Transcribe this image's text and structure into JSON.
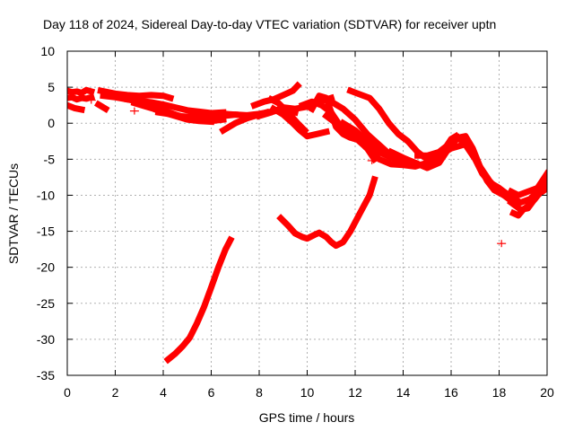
{
  "chart_data": {
    "type": "line",
    "title": "Day 118 of 2024, Sidereal Day-to-day VTEC variation (SDTVAR) for receiver uptn",
    "xlabel": "GPS time / hours",
    "ylabel": "SDTVAR / TECUs",
    "xlim": [
      0,
      20
    ],
    "ylim": [
      -35,
      10
    ],
    "xticks": [
      0,
      2,
      4,
      6,
      8,
      10,
      12,
      14,
      16,
      18,
      20
    ],
    "yticks": [
      10,
      5,
      0,
      -5,
      -10,
      -15,
      -20,
      -25,
      -30,
      -35
    ],
    "grid": true,
    "color": "#ff0000",
    "series": [
      {
        "name": "trace-1",
        "x": [
          0.0,
          0.2,
          0.4,
          0.6,
          0.8,
          1.0
        ],
        "y": [
          4.5,
          4.3,
          4.4,
          4.2,
          4.6,
          4.4
        ]
      },
      {
        "name": "trace-2",
        "x": [
          0.0,
          0.2,
          0.4,
          0.6,
          0.8,
          1.0
        ],
        "y": [
          3.5,
          3.6,
          3.3,
          3.5,
          3.4,
          3.6
        ]
      },
      {
        "name": "trace-3",
        "x": [
          0.0,
          0.3,
          0.6
        ],
        "y": [
          2.5,
          2.1,
          1.9
        ]
      },
      {
        "name": "trace-4",
        "x": [
          1.4,
          2.0,
          2.5,
          3.0,
          3.5,
          4.0,
          4.3
        ],
        "y": [
          4.5,
          4.1,
          3.9,
          3.8,
          3.9,
          3.8,
          3.5
        ]
      },
      {
        "name": "trace-5",
        "x": [
          1.5,
          2.0,
          2.5,
          3.0,
          3.5,
          4.0,
          4.5,
          5.0,
          5.5,
          6.0,
          6.5
        ],
        "y": [
          3.8,
          3.6,
          3.3,
          3.1,
          2.9,
          2.6,
          2.2,
          1.8,
          1.6,
          1.4,
          1.5
        ]
      },
      {
        "name": "trace-6",
        "x": [
          1.3,
          1.6
        ],
        "y": [
          2.6,
          2.0
        ]
      },
      {
        "name": "trace-7",
        "x": [
          2.5,
          3.0,
          3.5,
          4.0,
          4.5,
          5.0,
          5.5,
          6.0,
          6.5
        ],
        "y": [
          3.3,
          3.0,
          2.5,
          1.8,
          1.2,
          0.7,
          0.4,
          0.3,
          0.5
        ]
      },
      {
        "name": "trace-8",
        "x": [
          2.8,
          3.2,
          3.6,
          4.0,
          4.5,
          5.0,
          5.5,
          6.0
        ],
        "y": [
          2.8,
          2.4,
          2.0,
          1.5,
          1.0,
          0.5,
          0.3,
          0.2
        ]
      },
      {
        "name": "trace-9",
        "x": [
          3.8,
          4.2,
          4.6,
          5.0,
          5.5,
          6.0,
          6.5,
          7.0
        ],
        "y": [
          1.5,
          1.3,
          1.0,
          0.9,
          1.0,
          1.2,
          1.3,
          1.2
        ]
      },
      {
        "name": "trace-10",
        "x": [
          6.0,
          6.5,
          7.0,
          7.5,
          8.0,
          8.5,
          9.0,
          9.5
        ],
        "y": [
          0.7,
          1.0,
          1.2,
          1.1,
          1.3,
          1.6,
          1.9,
          1.5
        ]
      },
      {
        "name": "trace-11",
        "x": [
          6.5,
          7.0,
          7.5,
          8.0,
          8.3
        ],
        "y": [
          -1.0,
          0.0,
          0.7,
          1.2,
          1.5
        ]
      },
      {
        "name": "trace-12",
        "x": [
          7.8,
          8.2,
          8.6,
          9.0,
          9.4,
          9.6
        ],
        "y": [
          2.5,
          3.0,
          3.3,
          3.9,
          4.5,
          5.2
        ]
      },
      {
        "name": "trace-13",
        "x": [
          8.0,
          8.5,
          9.0,
          9.5,
          10.0,
          10.5,
          11.0
        ],
        "y": [
          1.0,
          1.5,
          2.2,
          2.0,
          2.3,
          3.0,
          3.5
        ]
      },
      {
        "name": "trace-14",
        "x": [
          8.5,
          8.8,
          9.2,
          9.6,
          9.9
        ],
        "y": [
          3.3,
          2.8,
          1.5,
          0.0,
          -1.0
        ]
      },
      {
        "name": "trace-15",
        "x": [
          8.6,
          9.0,
          9.4,
          9.7,
          10.0,
          10.4,
          10.8
        ],
        "y": [
          2.0,
          1.2,
          0.0,
          -1.0,
          -1.8,
          -1.5,
          -1.2
        ]
      },
      {
        "name": "trace-16",
        "x": [
          8.9,
          9.2,
          9.5,
          9.8,
          10.0,
          10.3,
          10.5,
          10.8,
          11.0,
          11.2,
          11.5,
          11.8,
          12.2,
          12.6,
          12.8
        ],
        "y": [
          -13.2,
          -14.2,
          -15.3,
          -15.8,
          -16.0,
          -15.5,
          -15.2,
          -15.8,
          -16.5,
          -17.0,
          -16.5,
          -15.0,
          -12.5,
          -10.0,
          -7.8
        ]
      },
      {
        "name": "trace-17",
        "x": [
          9.8,
          10.2,
          10.6,
          11.0,
          11.4,
          11.8,
          12.2
        ],
        "y": [
          2.5,
          3.0,
          2.5,
          1.5,
          -0.5,
          -1.5,
          -1.7
        ]
      },
      {
        "name": "trace-18",
        "x": [
          10.2,
          10.5,
          10.8,
          11.0,
          11.2,
          11.5,
          11.8,
          12.1,
          12.5,
          12.8
        ],
        "y": [
          2.0,
          3.8,
          3.5,
          1.5,
          -0.5,
          -1.5,
          -2.0,
          -2.3,
          -3.5,
          -5.0
        ]
      },
      {
        "name": "trace-19",
        "x": [
          10.8,
          11.2,
          11.6,
          12.0,
          12.4,
          12.8
        ],
        "y": [
          1.0,
          0.0,
          -0.8,
          -1.3,
          -2.5,
          -4.0
        ]
      },
      {
        "name": "trace-20",
        "x": [
          11.0,
          11.5,
          12.0,
          12.5,
          13.0,
          13.5,
          14.0,
          14.5
        ],
        "y": [
          3.0,
          2.0,
          0.5,
          -1.5,
          -3.0,
          -4.5,
          -5.0,
          -5.5
        ]
      },
      {
        "name": "trace-21",
        "x": [
          11.5,
          12.0,
          12.5,
          13.0,
          13.5,
          14.0,
          14.4
        ],
        "y": [
          0.0,
          -1.0,
          -2.5,
          -4.0,
          -4.8,
          -5.3,
          -5.5
        ]
      },
      {
        "name": "trace-22",
        "x": [
          11.8,
          12.2,
          12.6,
          13.0,
          13.4,
          13.8,
          14.2,
          14.6,
          15.0
        ],
        "y": [
          4.5,
          4.0,
          3.5,
          2.0,
          0.0,
          -1.5,
          -2.5,
          -4.0,
          -5.0
        ]
      },
      {
        "name": "trace-23",
        "x": [
          12.5,
          13.0,
          13.5,
          14.0,
          14.5,
          15.0,
          15.5,
          16.0,
          16.5
        ],
        "y": [
          -3.5,
          -5.0,
          -5.7,
          -5.8,
          -6.0,
          -5.5,
          -4.5,
          -3.5,
          -3.0
        ]
      },
      {
        "name": "trace-24",
        "x": [
          13.5,
          14.0,
          14.5,
          15.0,
          15.5,
          16.0,
          16.3
        ],
        "y": [
          -4.0,
          -4.8,
          -5.5,
          -6.2,
          -5.5,
          -3.0,
          -2.0
        ]
      },
      {
        "name": "trace-25",
        "x": [
          14.6,
          15.0,
          15.5,
          15.8,
          16.0,
          16.2
        ],
        "y": [
          -4.5,
          -4.5,
          -4.0,
          -3.2,
          -2.2,
          -1.8
        ]
      },
      {
        "name": "trace-26",
        "x": [
          15.0,
          15.5,
          16.0,
          16.3,
          16.6,
          16.9,
          17.2,
          17.6,
          18.0,
          18.4
        ],
        "y": [
          -6.0,
          -5.0,
          -3.0,
          -2.0,
          -1.8,
          -3.5,
          -6.0,
          -8.0,
          -9.5,
          -10.5
        ]
      },
      {
        "name": "trace-27",
        "x": [
          16.3,
          16.6,
          17.0,
          17.3,
          17.6,
          18.0,
          18.4
        ],
        "y": [
          -2.0,
          -3.0,
          -5.0,
          -7.0,
          -8.2,
          -9.0,
          -10.0
        ]
      },
      {
        "name": "trace-28",
        "x": [
          16.5,
          16.8,
          17.2,
          17.5,
          17.8,
          18.2
        ],
        "y": [
          -2.2,
          -3.5,
          -6.0,
          -8.0,
          -9.3,
          -10.0
        ]
      },
      {
        "name": "trace-29",
        "x": [
          18.6,
          18.8,
          19.0,
          19.2,
          19.5,
          19.8,
          20.0
        ],
        "y": [
          -12.5,
          -12.8,
          -12.0,
          -11.5,
          -10.5,
          -9.2,
          -8.0
        ]
      },
      {
        "name": "trace-30",
        "x": [
          18.6,
          18.9,
          19.3,
          19.6,
          19.9,
          20.0
        ],
        "y": [
          -10.5,
          -11.0,
          -10.5,
          -9.5,
          -8.5,
          -7.5
        ]
      },
      {
        "name": "trace-31",
        "x": [
          18.5,
          18.9,
          19.2,
          19.6,
          20.0
        ],
        "y": [
          -11.0,
          -12.0,
          -11.8,
          -10.0,
          -9.0
        ]
      },
      {
        "name": "trace-32",
        "x": [
          18.5,
          18.8,
          19.2,
          19.6,
          20.0
        ],
        "y": [
          -9.5,
          -10.0,
          -9.5,
          -9.0,
          -7.0
        ]
      },
      {
        "name": "trace-33",
        "x": [
          4.2,
          4.5,
          4.8,
          5.1,
          5.4,
          5.7,
          6.0,
          6.3,
          6.6,
          6.8
        ],
        "y": [
          -32.8,
          -32.0,
          -31.0,
          -29.8,
          -27.8,
          -25.5,
          -22.8,
          -20.0,
          -17.5,
          -16.2
        ]
      }
    ],
    "points": [
      {
        "x": 18.1,
        "y": -16.7
      },
      {
        "x": 1.0,
        "y": 3.2
      },
      {
        "x": 2.8,
        "y": 1.7
      },
      {
        "x": 9.1,
        "y": 1.0
      },
      {
        "x": 12.7,
        "y": -5.2
      }
    ]
  }
}
